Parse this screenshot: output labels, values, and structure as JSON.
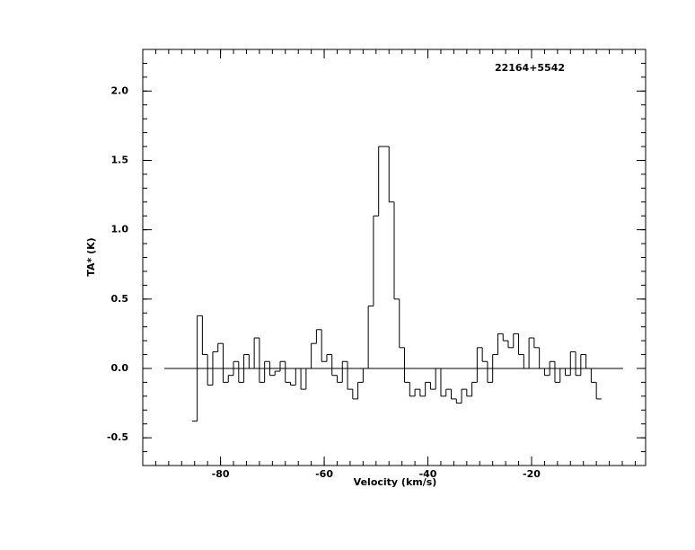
{
  "chart_data": {
    "type": "line",
    "step": true,
    "title": "22164+5542",
    "xlabel": "Velocity (km/s)",
    "ylabel": "TA* (K)",
    "color": "#000000",
    "xlim": [
      -95,
      2
    ],
    "ylim": [
      -0.7,
      2.3
    ],
    "xticks": [
      -80,
      -60,
      -40,
      -20
    ],
    "yticks": [
      {
        "value": 2,
        "label": "2.0"
      },
      1.5,
      {
        "value": 1,
        "label": "1.0"
      },
      0.5,
      {
        "value": 0,
        "label": "0.0"
      },
      -0.5
    ],
    "x": [
      -85,
      -84,
      -83,
      -82,
      -81,
      -80,
      -79,
      -78,
      -77,
      -76,
      -75,
      -74,
      -73,
      -72,
      -71,
      -70,
      -69,
      -68,
      -67,
      -66,
      -65,
      -64,
      -63,
      -62,
      -61,
      -60,
      -59,
      -58,
      -57,
      -56,
      -55,
      -54,
      -53,
      -52,
      -51,
      -50,
      -49,
      -48,
      -47,
      -46,
      -45,
      -44,
      -43,
      -42,
      -41,
      -40,
      -39,
      -38,
      -37,
      -36,
      -35,
      -34,
      -33,
      -32,
      -31,
      -30,
      -29,
      -28,
      -27,
      -26,
      -25,
      -24,
      -23,
      -22,
      -21,
      -20,
      -19,
      -18,
      -17,
      -16,
      -15,
      -14,
      -13,
      -12,
      -11,
      -10,
      -9,
      -8,
      -7
    ],
    "values": [
      -0.38,
      0.38,
      0.1,
      -0.12,
      0.12,
      0.18,
      -0.1,
      -0.05,
      0.05,
      -0.1,
      0.1,
      0.0,
      0.22,
      -0.1,
      0.05,
      -0.05,
      -0.02,
      0.05,
      -0.1,
      -0.12,
      0.0,
      -0.15,
      0.0,
      0.18,
      0.28,
      0.05,
      0.1,
      -0.05,
      -0.1,
      0.05,
      -0.15,
      -0.22,
      -0.1,
      0.0,
      0.45,
      1.1,
      1.6,
      1.6,
      1.2,
      0.5,
      0.15,
      -0.1,
      -0.2,
      -0.15,
      -0.2,
      -0.1,
      -0.15,
      0.0,
      -0.2,
      -0.15,
      -0.22,
      -0.25,
      -0.15,
      -0.2,
      -0.1,
      0.15,
      0.05,
      -0.1,
      0.1,
      0.25,
      0.2,
      0.15,
      0.25,
      0.1,
      0.0,
      0.22,
      0.15,
      0.0,
      -0.05,
      0.05,
      -0.1,
      0.0,
      -0.05,
      0.12,
      -0.05,
      0.1,
      0.0,
      -0.1,
      -0.22
    ]
  }
}
